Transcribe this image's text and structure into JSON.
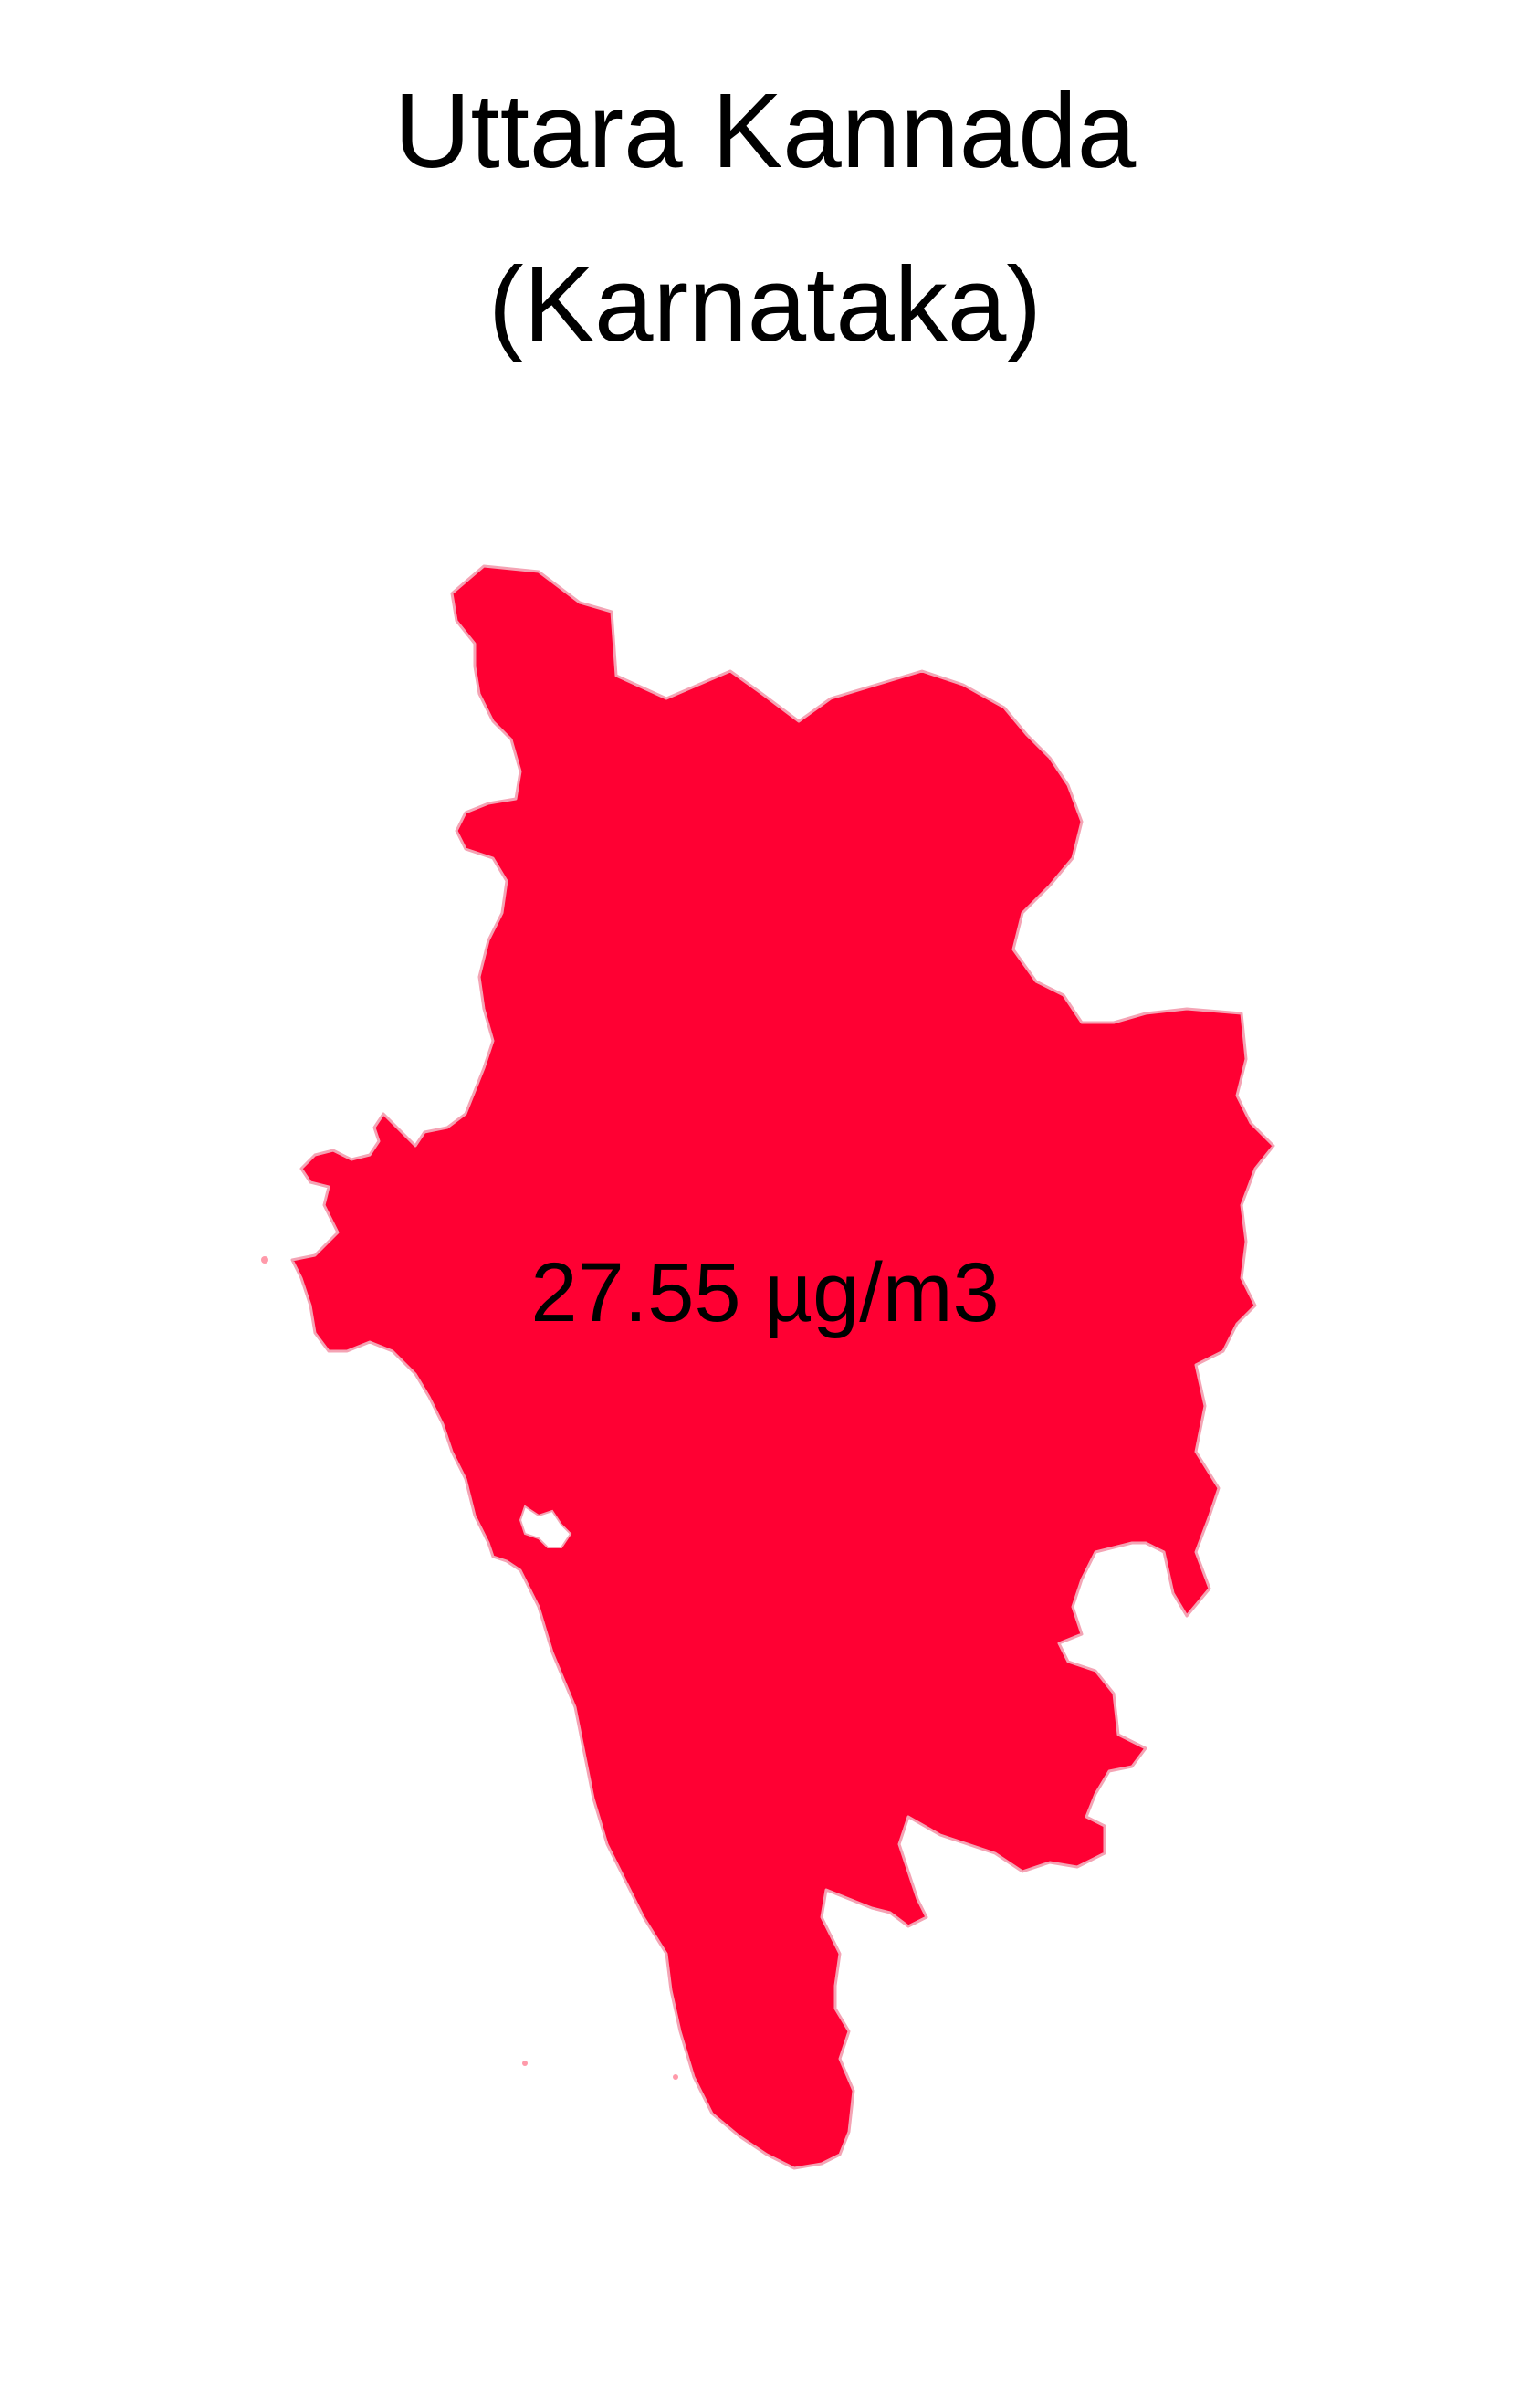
{
  "title_line_1": "Uttara Kannada",
  "title_line_2": "(Karnataka)",
  "region": {
    "value_label": "27.55 µg/m3",
    "fill_color": "#FF0033",
    "border_color": "#F4A3B4"
  },
  "background_color": "#FFFFFF"
}
